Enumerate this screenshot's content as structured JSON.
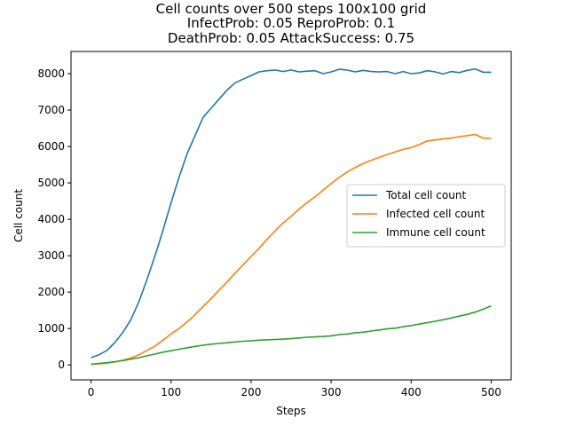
{
  "chart_data": {
    "type": "line",
    "title_lines": [
      "Cell counts over 500 steps 100x100 grid",
      "InfectProb: 0.05 ReproProb: 0.1",
      "DeathProb: 0.05 AttackSuccess: 0.75"
    ],
    "xlabel": "Steps",
    "ylabel": "Cell count",
    "xlim": [
      -25,
      525
    ],
    "ylim": [
      -410,
      8610
    ],
    "x_ticks": [
      0,
      100,
      200,
      300,
      400,
      500
    ],
    "y_ticks": [
      0,
      1000,
      2000,
      3000,
      4000,
      5000,
      6000,
      7000,
      8000
    ],
    "grid": false,
    "legend_position": "center-right",
    "series": [
      {
        "name": "Total cell count",
        "color": "#1f77b4",
        "x": [
          0,
          10,
          20,
          30,
          40,
          50,
          60,
          70,
          80,
          90,
          100,
          110,
          120,
          130,
          140,
          150,
          160,
          170,
          180,
          190,
          200,
          210,
          220,
          230,
          240,
          250,
          260,
          270,
          280,
          290,
          300,
          310,
          320,
          330,
          340,
          350,
          360,
          370,
          380,
          390,
          400,
          410,
          420,
          430,
          440,
          450,
          460,
          470,
          480,
          490,
          500
        ],
        "values": [
          200,
          280,
          400,
          620,
          900,
          1250,
          1750,
          2350,
          3000,
          3700,
          4450,
          5150,
          5800,
          6300,
          6800,
          7050,
          7300,
          7550,
          7750,
          7850,
          7950,
          8050,
          8080,
          8100,
          8060,
          8100,
          8050,
          8070,
          8080,
          8000,
          8050,
          8120,
          8100,
          8050,
          8090,
          8060,
          8050,
          8060,
          8000,
          8060,
          8000,
          8020,
          8080,
          8050,
          7990,
          8060,
          8030,
          8090,
          8130,
          8040,
          8040
        ]
      },
      {
        "name": "Infected cell count",
        "color": "#ff7f0e",
        "x": [
          0,
          10,
          20,
          30,
          40,
          50,
          60,
          70,
          80,
          90,
          100,
          110,
          120,
          130,
          140,
          150,
          160,
          170,
          180,
          190,
          200,
          210,
          220,
          230,
          240,
          250,
          260,
          270,
          280,
          290,
          300,
          310,
          320,
          330,
          340,
          350,
          360,
          370,
          380,
          390,
          400,
          410,
          420,
          430,
          440,
          450,
          460,
          470,
          480,
          490,
          500
        ],
        "values": [
          20,
          30,
          50,
          80,
          130,
          190,
          280,
          400,
          520,
          680,
          850,
          1000,
          1180,
          1380,
          1600,
          1820,
          2050,
          2280,
          2520,
          2750,
          2980,
          3200,
          3450,
          3680,
          3900,
          4080,
          4280,
          4460,
          4620,
          4800,
          4980,
          5150,
          5300,
          5420,
          5530,
          5620,
          5700,
          5780,
          5850,
          5920,
          5970,
          6050,
          6150,
          6180,
          6210,
          6230,
          6270,
          6300,
          6330,
          6230,
          6220
        ]
      },
      {
        "name": "Immune cell count",
        "color": "#2ca02c",
        "x": [
          0,
          10,
          20,
          30,
          40,
          50,
          60,
          70,
          80,
          90,
          100,
          110,
          120,
          130,
          140,
          150,
          160,
          170,
          180,
          190,
          200,
          210,
          220,
          230,
          240,
          250,
          260,
          270,
          280,
          290,
          300,
          310,
          320,
          330,
          340,
          350,
          360,
          370,
          380,
          390,
          400,
          410,
          420,
          430,
          440,
          450,
          460,
          470,
          480,
          490,
          500
        ],
        "values": [
          20,
          40,
          60,
          90,
          120,
          160,
          200,
          250,
          300,
          350,
          390,
          430,
          470,
          510,
          540,
          570,
          590,
          610,
          630,
          650,
          660,
          680,
          690,
          700,
          710,
          720,
          740,
          760,
          770,
          780,
          800,
          830,
          850,
          880,
          900,
          930,
          960,
          990,
          1010,
          1050,
          1080,
          1120,
          1160,
          1200,
          1240,
          1290,
          1340,
          1390,
          1450,
          1530,
          1620
        ]
      }
    ]
  }
}
